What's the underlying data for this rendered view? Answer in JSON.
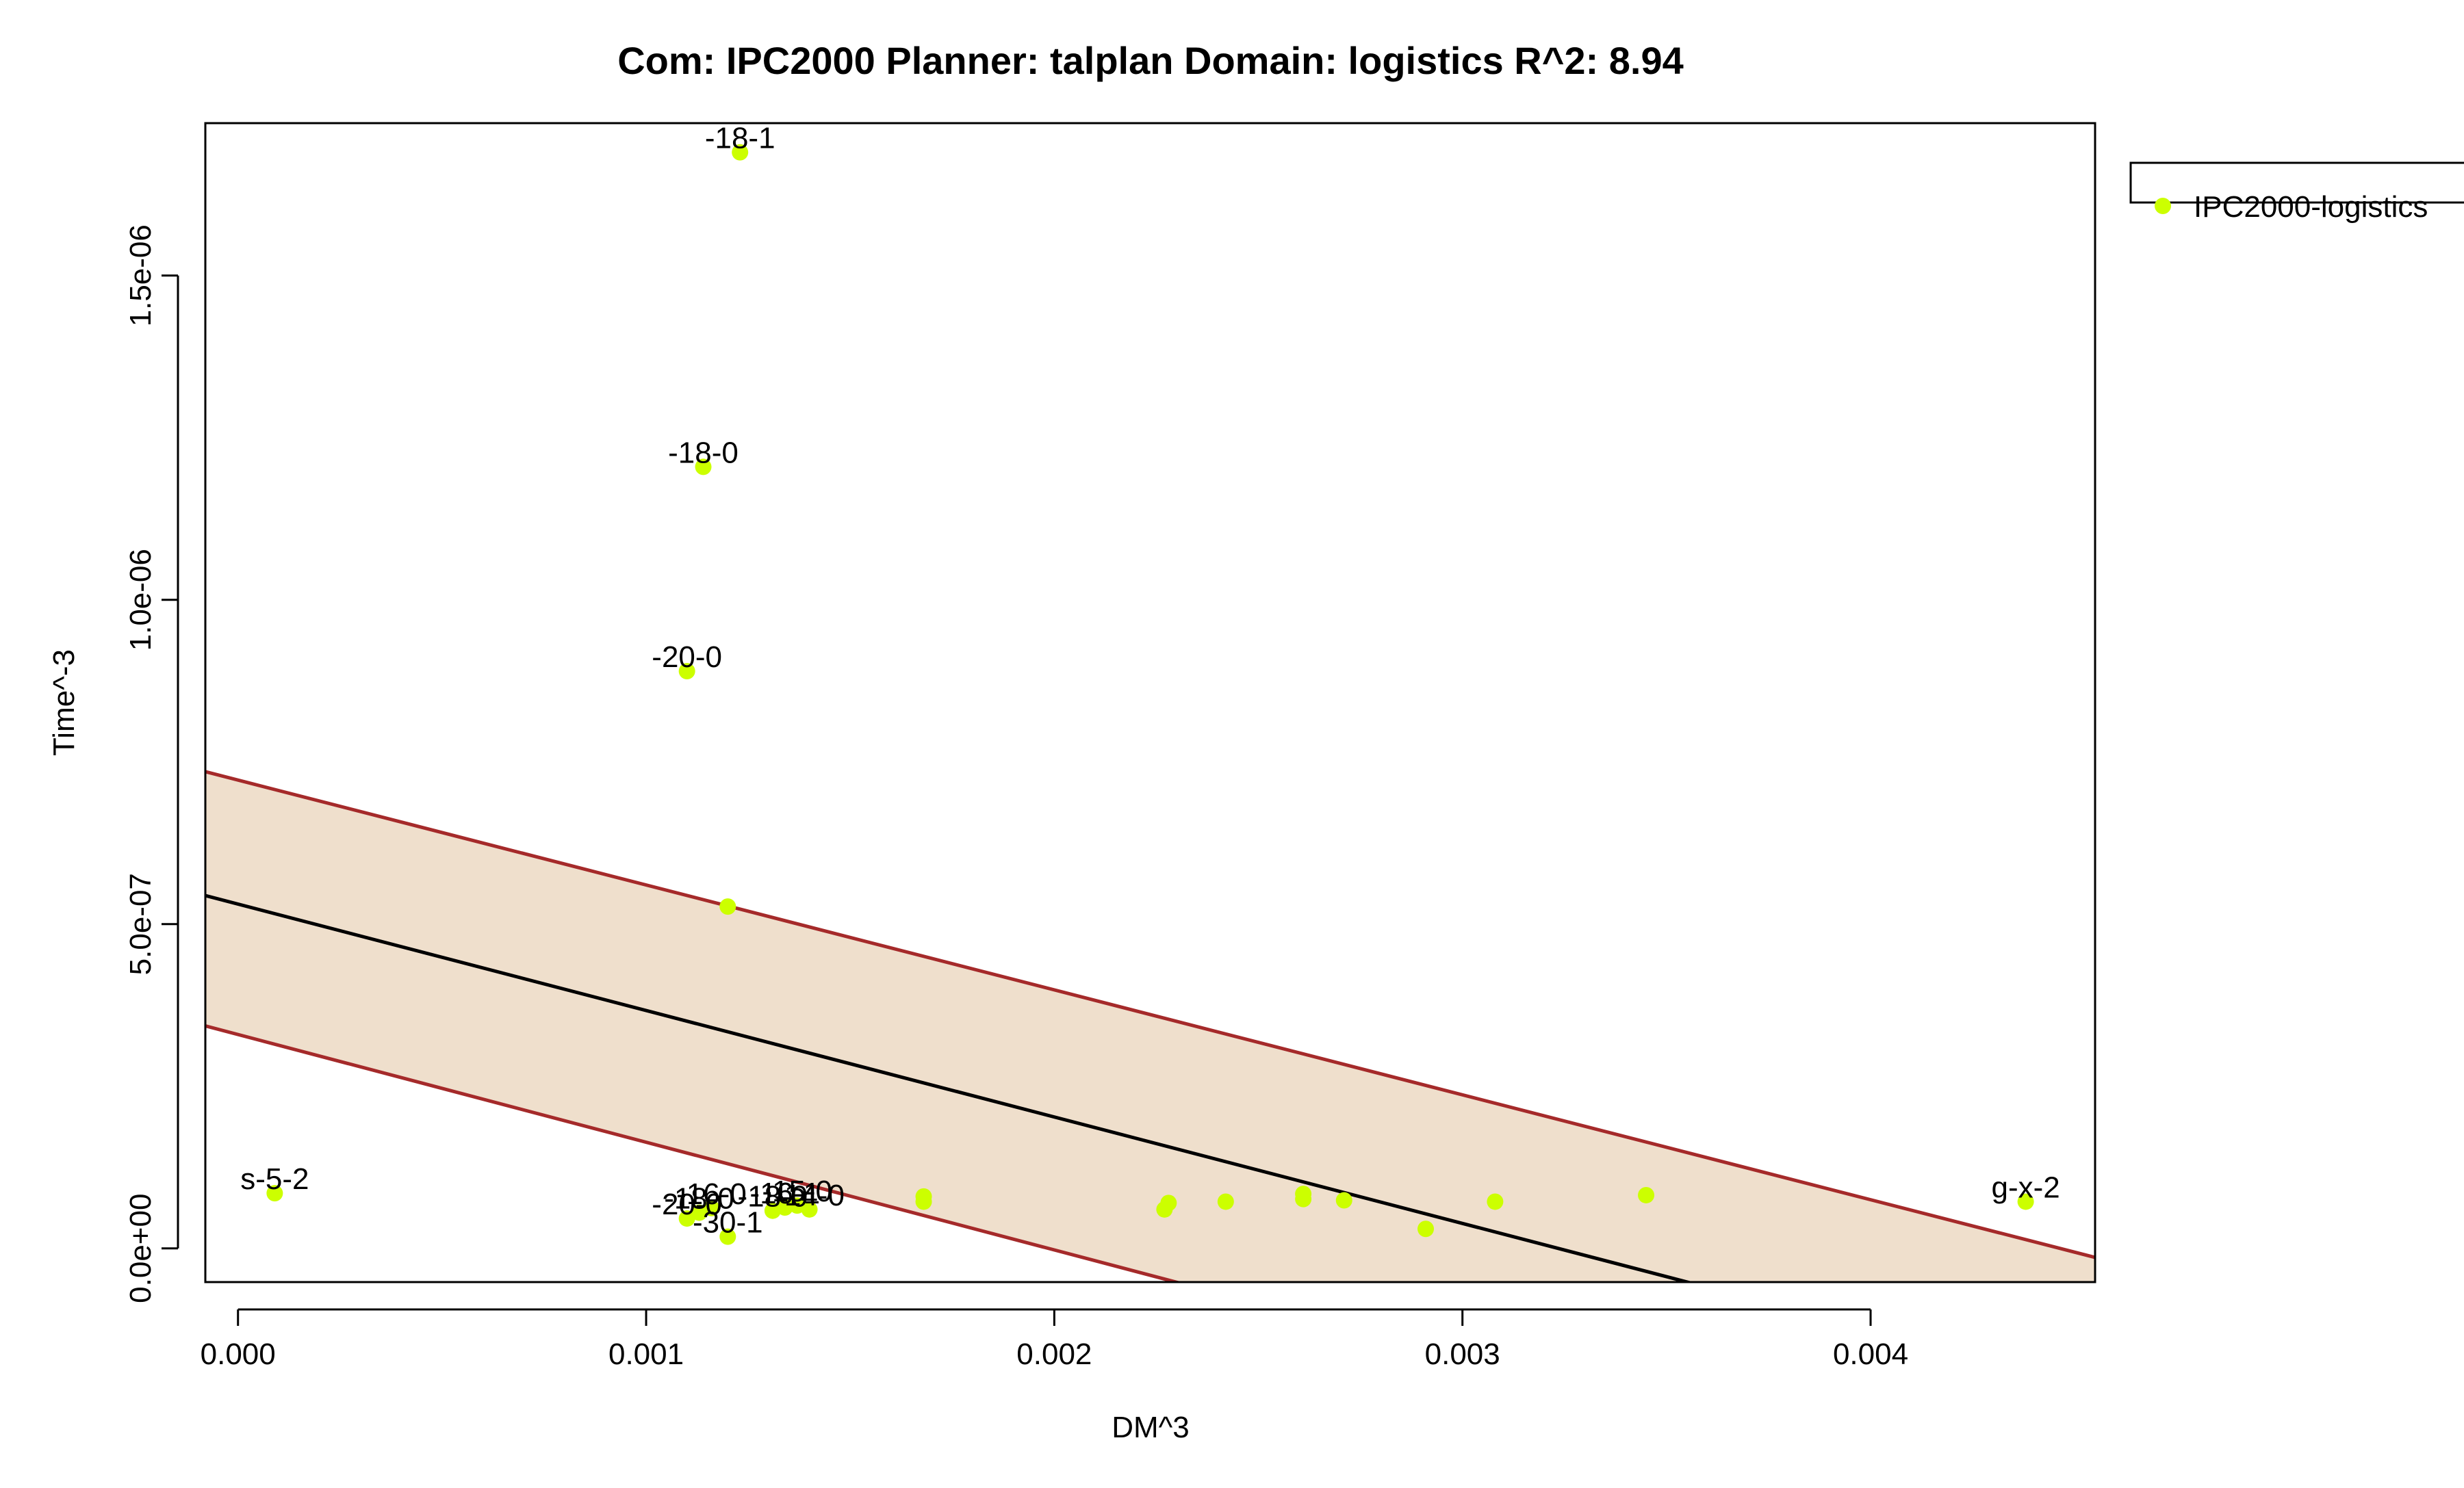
{
  "chart_data": {
    "type": "scatter",
    "title": "Com: IPC2000 Planner: talplan Domain: logistics R^2: 8.94",
    "xlabel": "DM^3",
    "ylabel": "Time^-3",
    "xlim": [
      -8e-05,
      0.00455
    ],
    "ylim": [
      -5.2e-08,
      1.735e-06
    ],
    "x_ticks": [
      {
        "value": 0.0,
        "label": "0.000"
      },
      {
        "value": 0.001,
        "label": "0.001"
      },
      {
        "value": 0.002,
        "label": "0.002"
      },
      {
        "value": 0.003,
        "label": "0.003"
      },
      {
        "value": 0.004,
        "label": "0.004"
      }
    ],
    "y_ticks": [
      {
        "value": 0,
        "label": "0.0e+00"
      },
      {
        "value": 5e-07,
        "label": "5.0e-07"
      },
      {
        "value": 1e-06,
        "label": "1.0e-06"
      },
      {
        "value": 1.5e-06,
        "label": "1.5e-06"
      }
    ],
    "legend": {
      "position": "top-right-outside",
      "entries": [
        {
          "name": "IPC2000-logistics",
          "color": "#ccff00"
        }
      ]
    },
    "colors": {
      "points": "#ccff00",
      "band_fill": "#efdfcc",
      "band_border": "#a52a2a",
      "fit_line": "#000000"
    },
    "regression": {
      "fit": {
        "x0": -8e-05,
        "y0": 5.44e-07,
        "x1": 0.00455,
        "y1": -2.16e-07
      },
      "upper": {
        "x0": -8e-05,
        "y0": 7.35e-07,
        "x1": 0.00455,
        "y1": -1.4e-08
      },
      "lower": {
        "x0": -8e-05,
        "y0": 3.43e-07,
        "x1": 0.00455,
        "y1": -4.26e-07
      }
    },
    "series": [
      {
        "name": "IPC2000-logistics",
        "points": [
          {
            "x": 9e-05,
            "y": 8.5e-08,
            "label": "s-5-2"
          },
          {
            "x": 0.00123,
            "y": 1.69e-06,
            "label": "-18-1"
          },
          {
            "x": 0.00114,
            "y": 1.205e-06,
            "label": "-18-0"
          },
          {
            "x": 0.0011,
            "y": 8.9e-07,
            "label": "-20-0"
          },
          {
            "x": 0.0012,
            "y": 5.27e-07,
            "label": ""
          },
          {
            "x": 0.0011,
            "y": 4.6e-08,
            "label": "-20-0"
          },
          {
            "x": 0.00113,
            "y": 5.5e-08,
            "label": "-18-0"
          },
          {
            "x": 0.00116,
            "y": 6.2e-08,
            "label": "-16-0"
          },
          {
            "x": 0.0012,
            "y": 1.8e-08,
            "label": "-30-1"
          },
          {
            "x": 0.00131,
            "y": 5.8e-08,
            "label": "-18-0"
          },
          {
            "x": 0.00134,
            "y": 6.3e-08,
            "label": "-16-1"
          },
          {
            "x": 0.00137,
            "y": 6.6e-08,
            "label": "-15-0"
          },
          {
            "x": 0.0014,
            "y": 6e-08,
            "label": "-14-0"
          },
          {
            "x": 0.00168,
            "y": 8e-08,
            "label": ""
          },
          {
            "x": 0.00168,
            "y": 7.2e-08,
            "label": ""
          },
          {
            "x": 0.00227,
            "y": 6e-08,
            "label": ""
          },
          {
            "x": 0.00228,
            "y": 7e-08,
            "label": ""
          },
          {
            "x": 0.00242,
            "y": 7.2e-08,
            "label": ""
          },
          {
            "x": 0.00261,
            "y": 7.6e-08,
            "label": ""
          },
          {
            "x": 0.00261,
            "y": 8.4e-08,
            "label": ""
          },
          {
            "x": 0.00271,
            "y": 7.4e-08,
            "label": ""
          },
          {
            "x": 0.00291,
            "y": 3e-08,
            "label": ""
          },
          {
            "x": 0.00308,
            "y": 7.2e-08,
            "label": ""
          },
          {
            "x": 0.00345,
            "y": 8.2e-08,
            "label": ""
          },
          {
            "x": 0.00438,
            "y": 7.2e-08,
            "label": "g-x-2"
          }
        ]
      }
    ]
  }
}
